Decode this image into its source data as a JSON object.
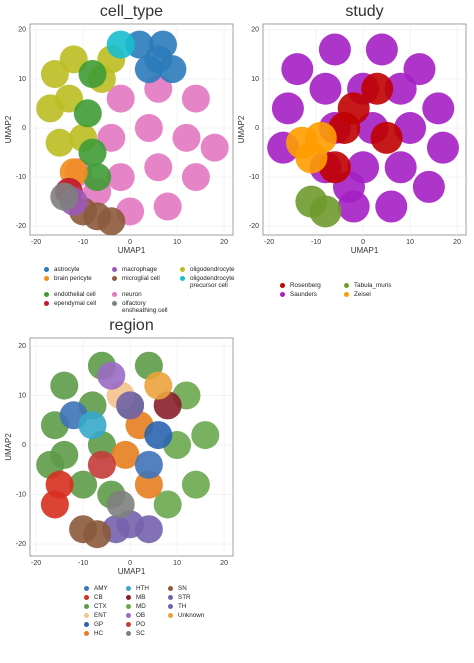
{
  "chart_data": [
    {
      "type": "scatter",
      "title": "cell_type",
      "x_label": "UMAP1",
      "y_label": "UMAP2",
      "xlim": [
        -21.3,
        21.9
      ],
      "ylim": [
        -21.8,
        21.2
      ],
      "xticks": [
        -20,
        -10,
        0,
        10,
        20
      ],
      "yticks": [
        -20,
        -10,
        0,
        10,
        20
      ],
      "grid": true,
      "series": [
        {
          "name": "astrocyte",
          "color": "#2b7bba",
          "x": [
            2,
            7,
            4,
            9,
            6
          ],
          "y": [
            17,
            17,
            12,
            12,
            14
          ]
        },
        {
          "name": "brain pericyte",
          "color": "#f28e1c",
          "x": [
            -12
          ],
          "y": [
            -9
          ]
        },
        {
          "name": "endothelial cell",
          "color": "#3f9c35",
          "x": [
            -8,
            -9,
            -8,
            -7
          ],
          "y": [
            11,
            3,
            -5,
            -10
          ]
        },
        {
          "name": "ependymal cell",
          "color": "#c0182a",
          "x": [
            -13
          ],
          "y": [
            -13
          ]
        },
        {
          "name": "macrophage",
          "color": "#9b59b6",
          "x": [
            -12
          ],
          "y": [
            -15
          ]
        },
        {
          "name": "microglial cell",
          "color": "#8c5a3c",
          "x": [
            -10,
            -7,
            -4
          ],
          "y": [
            -17,
            -18,
            -19
          ]
        },
        {
          "name": "neuron",
          "color": "#e377c2",
          "x": [
            -2,
            6,
            14,
            -4,
            4,
            12,
            18,
            -2,
            6,
            14,
            0,
            8,
            -11,
            -7
          ],
          "y": [
            6,
            8,
            6,
            -2,
            0,
            -2,
            -4,
            -10,
            -8,
            -10,
            -17,
            -16,
            -9,
            -13
          ]
        },
        {
          "name": "olfactory ensheathing cell",
          "color": "#7f7f7f",
          "x": [
            -14
          ],
          "y": [
            -14
          ]
        },
        {
          "name": "oligodendrocyte",
          "color": "#bcbd22",
          "x": [
            -16,
            -12,
            -17,
            -13,
            -15,
            -10,
            -6,
            -4
          ],
          "y": [
            11,
            14,
            4,
            6,
            -3,
            -2,
            10,
            14
          ]
        },
        {
          "name": "oligodendrocyte precursor cell",
          "color": "#17becf",
          "x": [
            -2
          ],
          "y": [
            17
          ]
        }
      ]
    },
    {
      "type": "scatter",
      "title": "study",
      "x_label": "UMAP1",
      "y_label": "UMAP2",
      "xlim": [
        -21.3,
        21.9
      ],
      "ylim": [
        -21.8,
        21.2
      ],
      "xticks": [
        -20,
        -10,
        0,
        10,
        20
      ],
      "yticks": [
        -20,
        -10,
        0,
        10,
        20
      ],
      "grid": true,
      "series": [
        {
          "name": "Rosenberg",
          "color": "#c00000",
          "x": [
            -4,
            5,
            3,
            -6,
            -2
          ],
          "y": [
            0,
            -2,
            8,
            -8,
            4
          ]
        },
        {
          "name": "Saunders",
          "color": "#a51fc4",
          "x": [
            -14,
            -6,
            4,
            12,
            -16,
            -8,
            0,
            8,
            16,
            -17,
            -6,
            2,
            10,
            17,
            -8,
            0,
            8,
            14,
            -2,
            6,
            -3
          ],
          "y": [
            12,
            16,
            16,
            12,
            4,
            8,
            8,
            8,
            4,
            -4,
            0,
            0,
            0,
            -4,
            -8,
            -8,
            -8,
            -12,
            -16,
            -16,
            -12
          ]
        },
        {
          "name": "Tabula_muris",
          "color": "#6f9a2e",
          "x": [
            -11,
            -8
          ],
          "y": [
            -15,
            -17
          ]
        },
        {
          "name": "Zeisel",
          "color": "#ff9d00",
          "x": [
            -13,
            -11,
            -9
          ],
          "y": [
            -3,
            -6,
            -2
          ]
        }
      ]
    },
    {
      "type": "scatter",
      "title": "region",
      "x_label": "UMAP1",
      "y_label": "UMAP2",
      "xlim": [
        -21.3,
        21.9
      ],
      "ylim": [
        -22.4,
        21.6
      ],
      "xticks": [
        -20,
        -10,
        0,
        10,
        20
      ],
      "yticks": [
        -20,
        -10,
        0,
        10,
        20
      ],
      "grid": true,
      "series": [
        {
          "name": "AMY",
          "color": "#3e73b8",
          "x": [
            -12,
            4
          ],
          "y": [
            6,
            -4
          ]
        },
        {
          "name": "CB",
          "color": "#d7301f",
          "x": [
            -16,
            -15
          ],
          "y": [
            -12,
            -8
          ]
        },
        {
          "name": "CTX",
          "color": "#5d9b48",
          "x": [
            -14,
            -6,
            4,
            -16,
            -8,
            0,
            -17,
            -6,
            -10,
            -4,
            -14
          ],
          "y": [
            12,
            16,
            16,
            4,
            8,
            8,
            -4,
            0,
            -8,
            -10,
            -2
          ]
        },
        {
          "name": "ENT",
          "color": "#f4c28f",
          "x": [
            -2
          ],
          "y": [
            10
          ]
        },
        {
          "name": "GP",
          "color": "#2b64b0",
          "x": [
            6
          ],
          "y": [
            2
          ]
        },
        {
          "name": "HC",
          "color": "#e77e1e",
          "x": [
            2,
            -1,
            4
          ],
          "y": [
            4,
            -2,
            -8
          ]
        },
        {
          "name": "HTH",
          "color": "#36a8c9",
          "x": [
            -8
          ],
          "y": [
            4
          ]
        },
        {
          "name": "MB",
          "color": "#8a1f2a",
          "x": [
            8
          ],
          "y": [
            8
          ]
        },
        {
          "name": "MD",
          "color": "#6aa84f",
          "x": [
            12,
            16,
            10,
            14,
            8
          ],
          "y": [
            10,
            2,
            0,
            -8,
            -12
          ]
        },
        {
          "name": "OB",
          "color": "#9a6bc4",
          "x": [
            -4
          ],
          "y": [
            14
          ]
        },
        {
          "name": "PO",
          "color": "#c43c39",
          "x": [
            -6
          ],
          "y": [
            -4
          ]
        },
        {
          "name": "SC",
          "color": "#808080",
          "x": [
            -2
          ],
          "y": [
            -12
          ]
        },
        {
          "name": "SN",
          "color": "#8b5a3c",
          "x": [
            -10,
            -7
          ],
          "y": [
            -17,
            -18
          ]
        },
        {
          "name": "STR",
          "color": "#7263a8",
          "x": [
            0
          ],
          "y": [
            8
          ]
        },
        {
          "name": "TH",
          "color": "#7463ad",
          "x": [
            0,
            4,
            -3
          ],
          "y": [
            -16,
            -17,
            -17
          ]
        },
        {
          "name": "Unknown",
          "color": "#eaa33c",
          "x": [
            6
          ],
          "y": [
            12
          ]
        }
      ]
    }
  ]
}
